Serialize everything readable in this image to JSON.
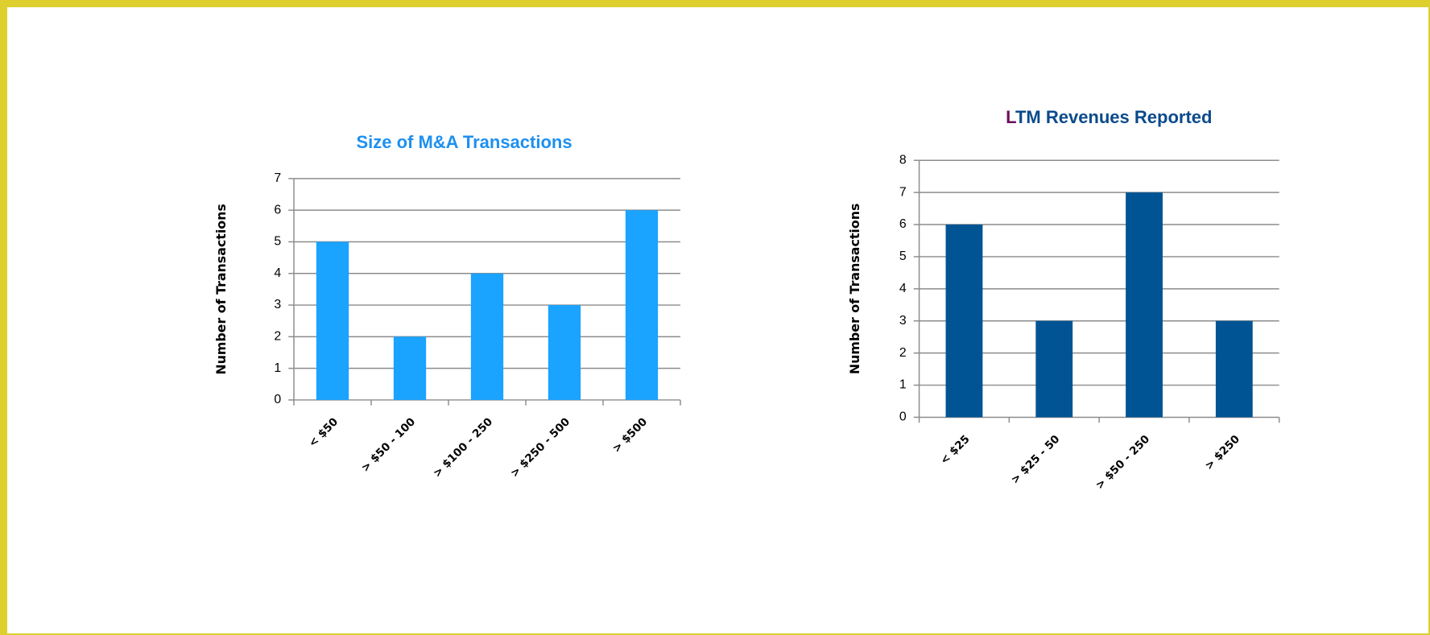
{
  "chart_data": [
    {
      "type": "bar",
      "title": "Size of M&A Transactions",
      "y_label": "Number of Transactions",
      "categories": [
        "< $50",
        "> $50 - 100",
        "> $100 - 250",
        "> $250 - 500",
        "> $500"
      ],
      "values": [
        5,
        2,
        4,
        3,
        6
      ],
      "color": "#1aa3ff",
      "title_color": "#1e90f0",
      "ylim": [
        0,
        7
      ],
      "yticks": [
        0,
        1,
        2,
        3,
        4,
        5,
        6,
        7
      ],
      "grid": true
    },
    {
      "type": "bar",
      "title": "LTM Revenues Reported",
      "y_label": "Number of Transactions",
      "categories": [
        "< $25",
        "> $25 - 50",
        "> $50 - 250",
        "> $250"
      ],
      "values": [
        6,
        3,
        7,
        3
      ],
      "color": "#005494",
      "title_color": "#0b4a8b",
      "ylim": [
        0,
        8
      ],
      "yticks": [
        0,
        1,
        2,
        3,
        4,
        5,
        6,
        7,
        8
      ],
      "grid": true
    }
  ]
}
